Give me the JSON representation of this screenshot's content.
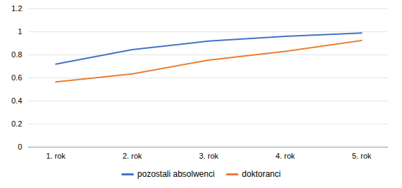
{
  "chart_data": {
    "type": "line",
    "categories": [
      "1. rok",
      "2. rok",
      "3. rok",
      "4. rok",
      "5. rok"
    ],
    "series": [
      {
        "name": "pozostali absolwenci",
        "color": "#4472C4",
        "values": [
          0.72,
          0.845,
          0.92,
          0.96,
          0.99
        ]
      },
      {
        "name": "doktoranci",
        "color": "#ED7D31",
        "values": [
          0.565,
          0.635,
          0.755,
          0.83,
          0.925
        ]
      }
    ],
    "ylim": [
      0,
      1.2
    ],
    "yticks": [
      0,
      0.2,
      0.4,
      0.6,
      0.8,
      1,
      1.2
    ],
    "grid": true,
    "legend": "bottom"
  }
}
